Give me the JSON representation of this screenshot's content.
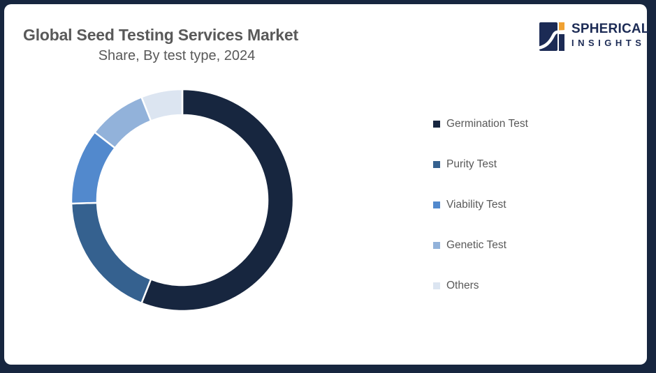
{
  "frame_color": "#17263f",
  "text_color": "#595959",
  "header": {
    "title": "Global Seed Testing Services Market",
    "subtitle": "Share, By test type, 2024"
  },
  "logo": {
    "brand": "SPHERICAL",
    "tagline": "INSIGHTS",
    "navy": "#1c2b55",
    "orange": "#f0a132"
  },
  "chart_data": {
    "type": "pie",
    "donut": true,
    "title": "Global Seed Testing Services Market Share, By test type, 2024",
    "categories": [
      "Germination Test",
      "Purity Test",
      "Viability Test",
      "Genetic Test",
      "Others"
    ],
    "values": [
      56,
      18.5,
      11,
      8.5,
      6
    ],
    "unit": "%",
    "values_estimated_from_arc_angles": true,
    "colors": [
      "#17263f",
      "#35618f",
      "#5289cd",
      "#92b2da",
      "#dce5f1"
    ],
    "start_angle_deg": 0,
    "direction": "clockwise",
    "inner_radius_ratio": 0.77,
    "legend_position": "right",
    "data_labels": false
  }
}
